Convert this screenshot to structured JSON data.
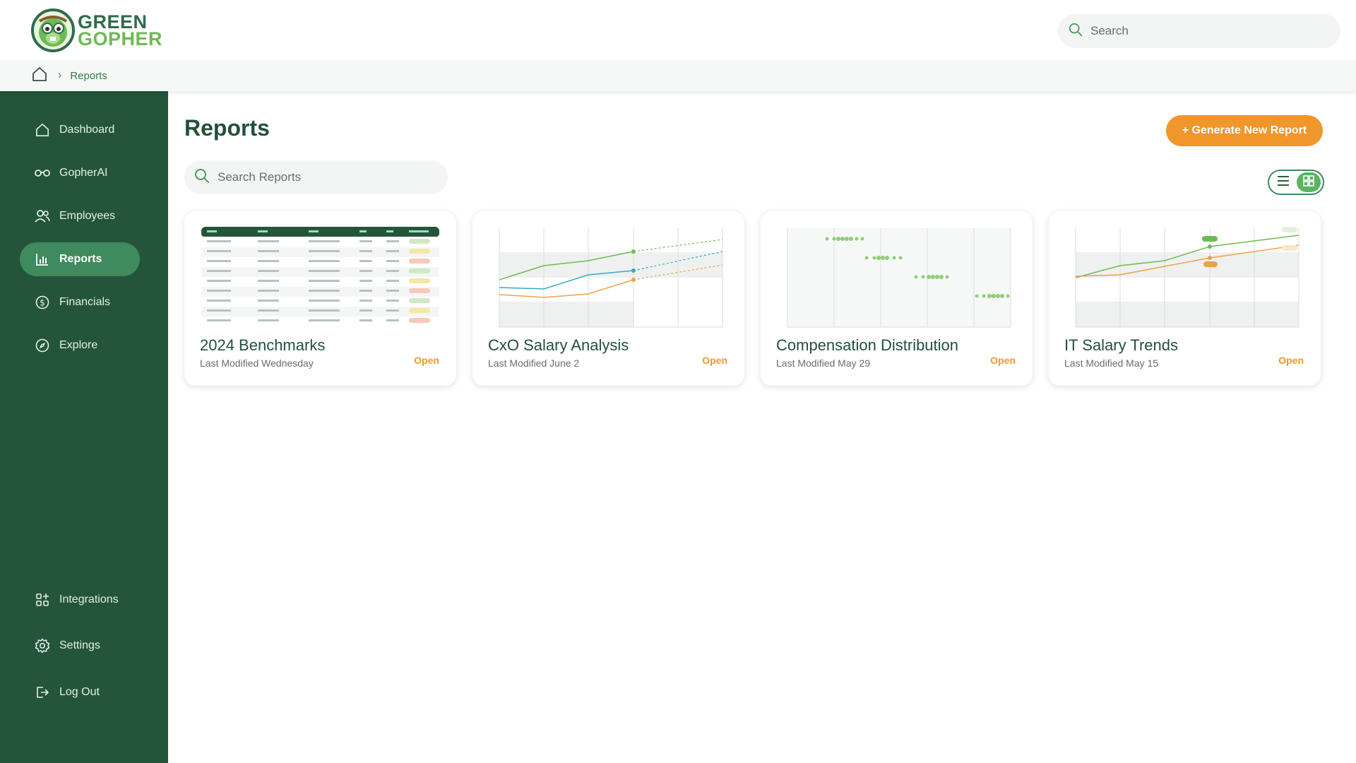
{
  "brand": {
    "line1": "GREEN",
    "line2": "GOPHER",
    "primary": "#24553b",
    "accent": "#f0962b",
    "highlight": "#5cb361"
  },
  "top_search": {
    "placeholder": "Search",
    "icon": "search-icon"
  },
  "breadcrumb": {
    "home_icon": "home-icon",
    "current": "Reports"
  },
  "sidebar": {
    "items": [
      {
        "label": "Dashboard",
        "icon": "home-icon"
      },
      {
        "label": "GopherAI",
        "icon": "glasses-icon"
      },
      {
        "label": "Employees",
        "icon": "users-icon"
      },
      {
        "label": "Reports",
        "icon": "bar-chart-icon",
        "active": true
      },
      {
        "label": "Financials",
        "icon": "dollar-coin-icon"
      },
      {
        "label": "Explore",
        "icon": "compass-icon"
      }
    ],
    "bottom_items": [
      {
        "label": "Integrations",
        "icon": "apps-plus-icon"
      },
      {
        "label": "Settings",
        "icon": "gear-icon"
      },
      {
        "label": "Log Out",
        "icon": "logout-icon"
      }
    ]
  },
  "main": {
    "title": "Reports",
    "generate_button": "+ Generate New Report",
    "search_placeholder": "Search Reports",
    "view_toggle": {
      "options": [
        "list",
        "grid"
      ],
      "selected": "grid"
    }
  },
  "reports": [
    {
      "title": "2024 Benchmarks",
      "modified": "Last Modified Wednesday",
      "action": "Open",
      "thumbnail": "table"
    },
    {
      "title": "CxO Salary Analysis",
      "modified": "Last Modified June 2",
      "action": "Open",
      "thumbnail": "line-chart"
    },
    {
      "title": "Compensation Distribution",
      "modified": "Last Modified May 29",
      "action": "Open",
      "thumbnail": "dot-plot"
    },
    {
      "title": "IT Salary Trends",
      "modified": "Last Modified May 15",
      "action": "Open",
      "thumbnail": "line-chart"
    }
  ]
}
